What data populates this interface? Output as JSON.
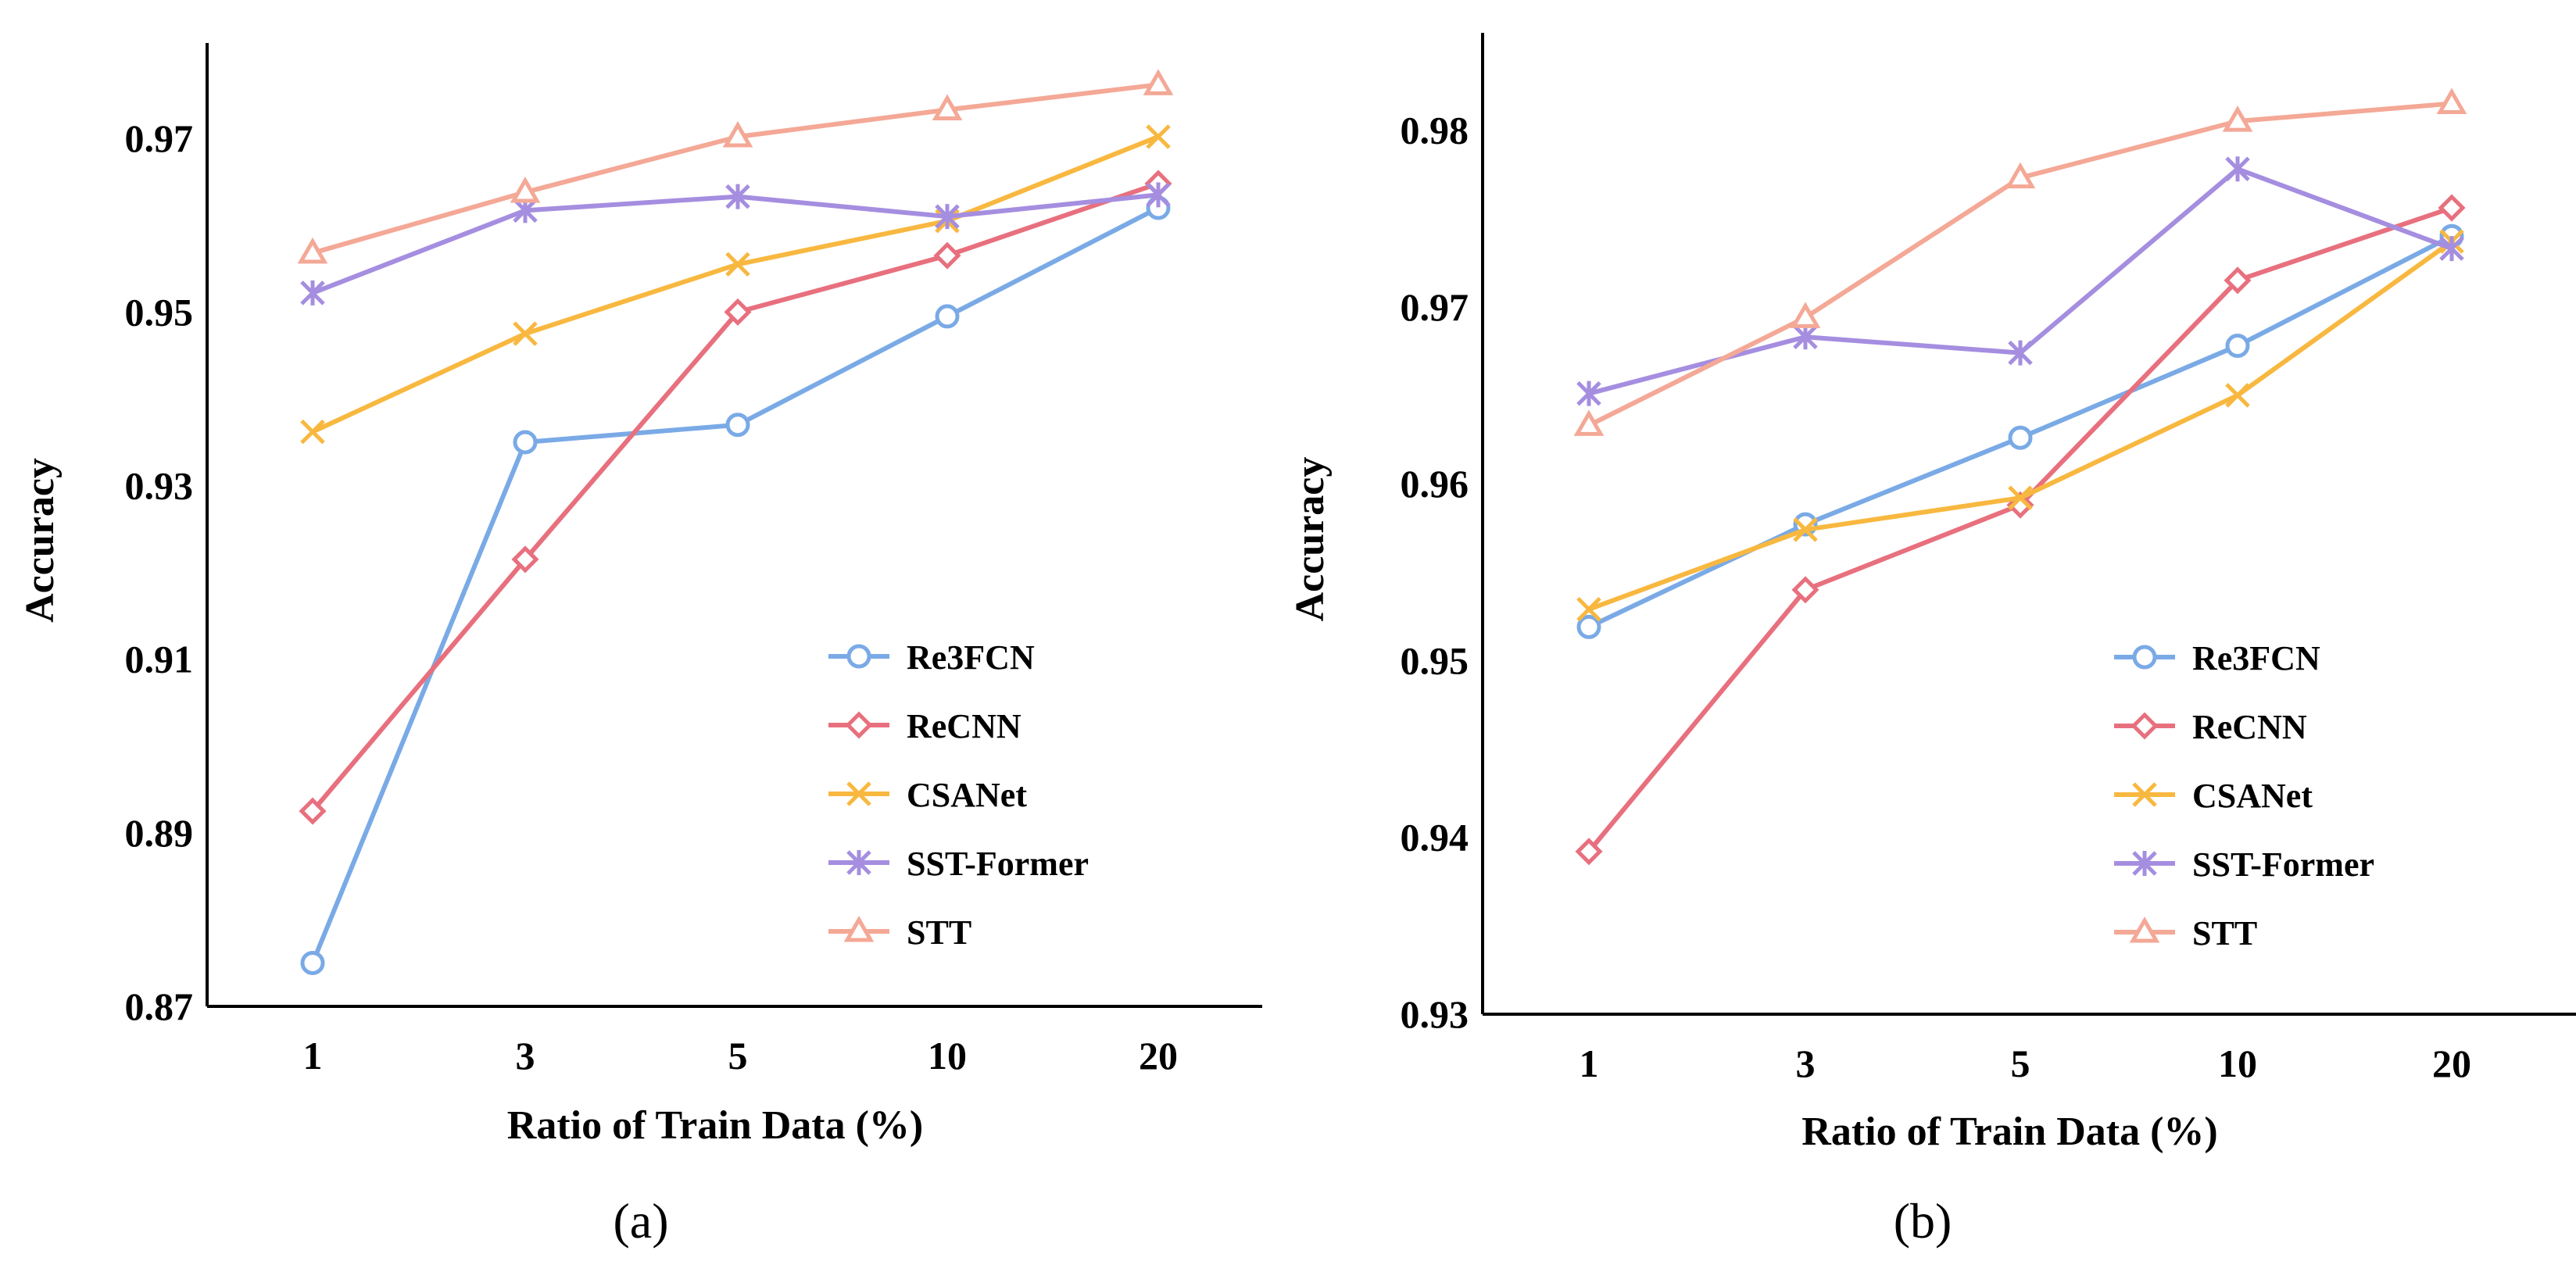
{
  "chart_data": [
    {
      "type": "line",
      "panel_label": "(a)",
      "categories": [
        "1",
        "3",
        "5",
        "10",
        "20"
      ],
      "xlabel": "Ratio of Train Data (%)",
      "ylabel": "Accuracy",
      "ylim": [
        0.87,
        0.98
      ],
      "yticks": [
        "0.87",
        "0.89",
        "0.91",
        "0.93",
        "0.95",
        "0.97"
      ],
      "grid": false,
      "legend": "bottom-right",
      "series": [
        {
          "name": "Re3FCN",
          "marker": "circle",
          "color": "#7aaae6",
          "values": [
            0.875,
            0.935,
            0.937,
            0.9495,
            0.962
          ]
        },
        {
          "name": "ReCNN",
          "marker": "diamond",
          "color": "#e8707e",
          "values": [
            0.8925,
            0.9215,
            0.95,
            0.9565,
            0.9648
          ]
        },
        {
          "name": "CSANet",
          "marker": "x",
          "color": "#f8b840",
          "values": [
            0.9362,
            0.9475,
            0.9555,
            0.9605,
            0.9702
          ]
        },
        {
          "name": "SST-Former",
          "marker": "star",
          "color": "#a58ee0",
          "values": [
            0.9522,
            0.9617,
            0.9633,
            0.961,
            0.9635
          ]
        },
        {
          "name": "STT",
          "marker": "triangle",
          "color": "#f4a896",
          "values": [
            0.9568,
            0.9638,
            0.9702,
            0.9733,
            0.9762
          ]
        }
      ]
    },
    {
      "type": "line",
      "panel_label": "(b)",
      "categories": [
        "1",
        "3",
        "5",
        "10",
        "20"
      ],
      "xlabel": "Ratio of Train Data (%)",
      "ylabel": "Accuracy",
      "ylim": [
        0.93,
        0.9855
      ],
      "yticks": [
        "0.93",
        "0.94",
        "0.95",
        "0.96",
        "0.97",
        "0.98"
      ],
      "grid": false,
      "legend": "bottom-right",
      "series": [
        {
          "name": "Re3FCN",
          "marker": "circle",
          "color": "#7aaae6",
          "values": [
            0.9519,
            0.9577,
            0.9626,
            0.9678,
            0.974
          ]
        },
        {
          "name": "ReCNN",
          "marker": "diamond",
          "color": "#e8707e",
          "values": [
            0.9392,
            0.954,
            0.9588,
            0.9715,
            0.9756
          ]
        },
        {
          "name": "CSANet",
          "marker": "x",
          "color": "#f8b840",
          "values": [
            0.9529,
            0.9574,
            0.9592,
            0.965,
            0.9737
          ]
        },
        {
          "name": "SST-Former",
          "marker": "star",
          "color": "#a58ee0",
          "values": [
            0.9651,
            0.9683,
            0.9674,
            0.9778,
            0.9733
          ]
        },
        {
          "name": "STT",
          "marker": "triangle",
          "color": "#f4a896",
          "values": [
            0.9633,
            0.9694,
            0.9773,
            0.9805,
            0.9815
          ]
        }
      ]
    }
  ]
}
